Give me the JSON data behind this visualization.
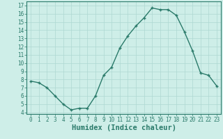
{
  "x": [
    0,
    1,
    2,
    3,
    4,
    5,
    6,
    7,
    8,
    9,
    10,
    11,
    12,
    13,
    14,
    15,
    16,
    17,
    18,
    19,
    20,
    21,
    22,
    23
  ],
  "y": [
    7.8,
    7.6,
    7.0,
    6.0,
    5.0,
    4.3,
    4.5,
    4.5,
    6.0,
    8.5,
    9.5,
    11.8,
    13.3,
    14.5,
    15.5,
    16.7,
    16.5,
    16.5,
    15.8,
    13.8,
    11.5,
    8.8,
    8.5,
    7.2
  ],
  "line_color": "#2a7a6a",
  "marker": "+",
  "marker_size": 3.5,
  "bg_color": "#ceeee8",
  "grid_color": "#aed8d2",
  "xlabel": "Humidex (Indice chaleur)",
  "ylim": [
    3.8,
    17.5
  ],
  "xlim": [
    -0.5,
    23.5
  ],
  "yticks": [
    4,
    5,
    6,
    7,
    8,
    9,
    10,
    11,
    12,
    13,
    14,
    15,
    16,
    17
  ],
  "xticks": [
    0,
    1,
    2,
    3,
    4,
    5,
    6,
    7,
    8,
    9,
    10,
    11,
    12,
    13,
    14,
    15,
    16,
    17,
    18,
    19,
    20,
    21,
    22,
    23
  ],
  "tick_fontsize": 5.5,
  "xlabel_fontsize": 7.5,
  "line_width": 1.0,
  "marker_color": "#2a7a6a",
  "spine_color": "#2a7a6a"
}
